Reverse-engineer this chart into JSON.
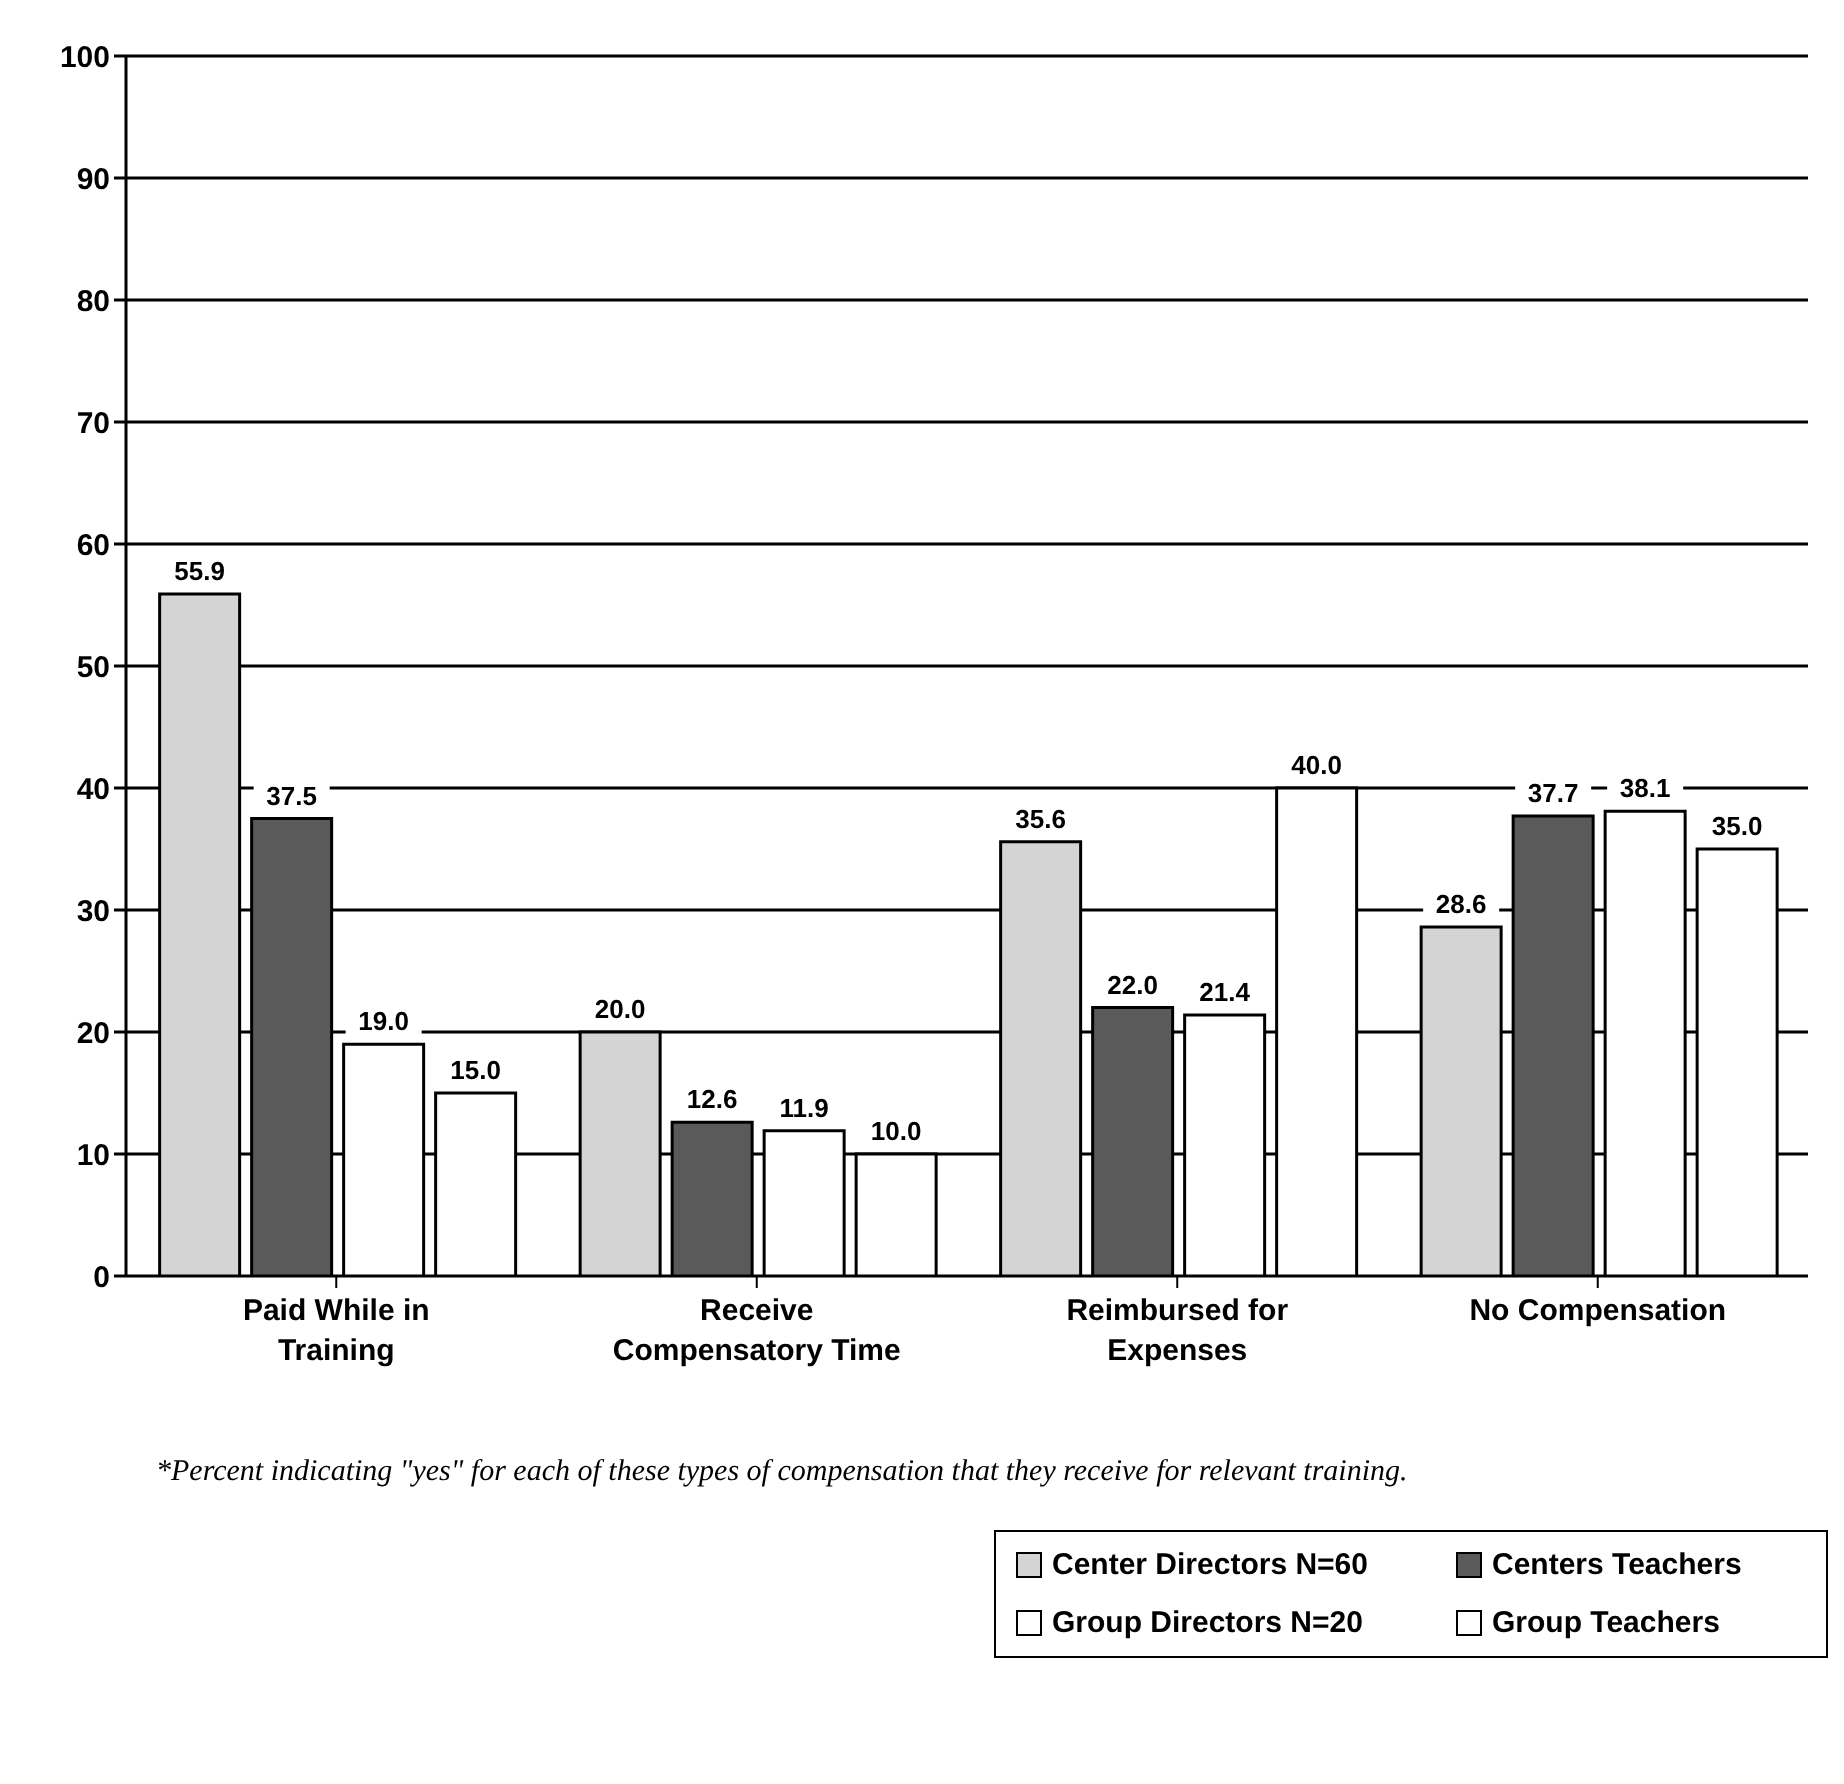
{
  "chart_data": {
    "type": "bar",
    "categories": [
      "Paid While in Training",
      "Receive Compensatory Time",
      "Reimbursed for Expenses",
      "No Compensation"
    ],
    "series": [
      {
        "name": "Center Directors N=60",
        "color": "#d4d4d4",
        "values": [
          55.9,
          20.0,
          35.6,
          28.6
        ],
        "value_labels": [
          "55.9",
          "20.0",
          "35.6",
          "28.6"
        ]
      },
      {
        "name": "Centers Teachers",
        "color": "#5a5a5a",
        "values": [
          37.5,
          12.6,
          22.0,
          37.7
        ],
        "value_labels": [
          "37.5",
          "12.6",
          "22.0",
          "37.7"
        ]
      },
      {
        "name": "Group Directors N=20",
        "color": "#ffffff",
        "values": [
          19.0,
          11.9,
          21.4,
          38.1
        ],
        "value_labels": [
          "19.0",
          "11.9",
          "21.4",
          "38.1"
        ]
      },
      {
        "name": "Group Teachers",
        "color": "#ffffff",
        "values": [
          15.0,
          10.0,
          40.0,
          35.0
        ],
        "value_labels": [
          "15.0",
          "10.0",
          "40.0",
          "35.0"
        ]
      }
    ],
    "ylim": [
      0,
      100
    ],
    "yticks": [
      0,
      10,
      20,
      30,
      40,
      50,
      60,
      70,
      80,
      90,
      100
    ],
    "grid": "y",
    "legend": "bottom right",
    "annotations": [
      "*Percent indicating \"yes\" for each of these types of compensation that they receive for relevant training."
    ]
  }
}
